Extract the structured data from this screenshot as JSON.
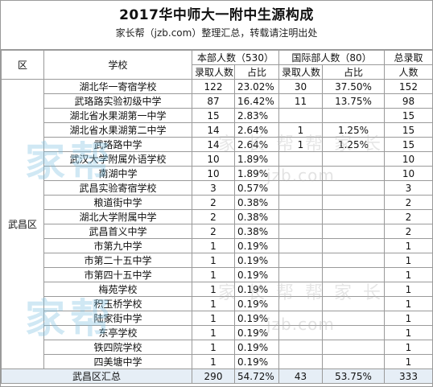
{
  "title": "2017华中师大一附中生源构成",
  "subtitle": "家长帮（jzb.com）整理汇总，转载请注明出处",
  "headers": {
    "region": "区",
    "school": "学校",
    "benbu_group": "本部人数（530）",
    "guoji_group": "国际部人数（80）",
    "total_line1": "总录取",
    "total_line2": "人数",
    "admit": "录取人数",
    "ratio": "占比"
  },
  "region_name": "武昌区",
  "rows": [
    {
      "school": "湖北华一寄宿学校",
      "bb_n": "122",
      "bb_pct": "23.02%",
      "gj_n": "30",
      "gj_pct": "37.50%",
      "total": "152"
    },
    {
      "school": "武珞路实验初级中学",
      "bb_n": "87",
      "bb_pct": "16.42%",
      "gj_n": "11",
      "gj_pct": "13.75%",
      "total": "98"
    },
    {
      "school": "湖北省水果湖第一中学",
      "bb_n": "15",
      "bb_pct": "2.83%",
      "gj_n": "",
      "gj_pct": "",
      "total": "15"
    },
    {
      "school": "湖北省水果湖第二中学",
      "bb_n": "14",
      "bb_pct": "2.64%",
      "gj_n": "1",
      "gj_pct": "1.25%",
      "total": "15"
    },
    {
      "school": "武珞路中学",
      "bb_n": "14",
      "bb_pct": "2.64%",
      "gj_n": "1",
      "gj_pct": "1.25%",
      "total": "15"
    },
    {
      "school": "武汉大学附属外语学校",
      "bb_n": "10",
      "bb_pct": "1.89%",
      "gj_n": "",
      "gj_pct": "",
      "total": "10"
    },
    {
      "school": "南湖中学",
      "bb_n": "10",
      "bb_pct": "1.89%",
      "gj_n": "",
      "gj_pct": "",
      "total": "10"
    },
    {
      "school": "武昌实验寄宿学校",
      "bb_n": "3",
      "bb_pct": "0.57%",
      "gj_n": "",
      "gj_pct": "",
      "total": "3"
    },
    {
      "school": "粮道街中学",
      "bb_n": "2",
      "bb_pct": "0.38%",
      "gj_n": "",
      "gj_pct": "",
      "total": "2"
    },
    {
      "school": "湖北大学附属中学",
      "bb_n": "2",
      "bb_pct": "0.38%",
      "gj_n": "",
      "gj_pct": "",
      "total": "2"
    },
    {
      "school": "武昌首义中学",
      "bb_n": "2",
      "bb_pct": "0.38%",
      "gj_n": "",
      "gj_pct": "",
      "total": "2"
    },
    {
      "school": "市第九中学",
      "bb_n": "1",
      "bb_pct": "0.19%",
      "gj_n": "",
      "gj_pct": "",
      "total": "1"
    },
    {
      "school": "市第二十五中学",
      "bb_n": "1",
      "bb_pct": "0.19%",
      "gj_n": "",
      "gj_pct": "",
      "total": "1"
    },
    {
      "school": "市第四十五中学",
      "bb_n": "1",
      "bb_pct": "0.19%",
      "gj_n": "",
      "gj_pct": "",
      "total": "1"
    },
    {
      "school": "梅苑学校",
      "bb_n": "1",
      "bb_pct": "0.19%",
      "gj_n": "",
      "gj_pct": "",
      "total": "1"
    },
    {
      "school": "积玉桥学校",
      "bb_n": "1",
      "bb_pct": "0.19%",
      "gj_n": "",
      "gj_pct": "",
      "total": "1"
    },
    {
      "school": "陆家街中学",
      "bb_n": "1",
      "bb_pct": "0.19%",
      "gj_n": "",
      "gj_pct": "",
      "total": "1"
    },
    {
      "school": "东亭学校",
      "bb_n": "1",
      "bb_pct": "0.19%",
      "gj_n": "",
      "gj_pct": "",
      "total": "1"
    },
    {
      "school": "铁四院学校",
      "bb_n": "1",
      "bb_pct": "0.19%",
      "gj_n": "",
      "gj_pct": "",
      "total": "1"
    },
    {
      "school": "四美塘中学",
      "bb_n": "1",
      "bb_pct": "0.19%",
      "gj_n": "",
      "gj_pct": "",
      "total": "1"
    }
  ],
  "summary": {
    "label": "武昌区汇总",
    "bb_n": "290",
    "bb_pct": "54.72%",
    "gj_n": "43",
    "gj_pct": "53.75%",
    "total": "333"
  },
  "watermark": {
    "brand": "家帮",
    "line": "家长帮帮家长",
    "url": "jzb.com"
  },
  "colors": {
    "grid": "#9a9a9a",
    "summary_bg": "#e6eef6",
    "watermark_brand": "#7cc0e0"
  }
}
